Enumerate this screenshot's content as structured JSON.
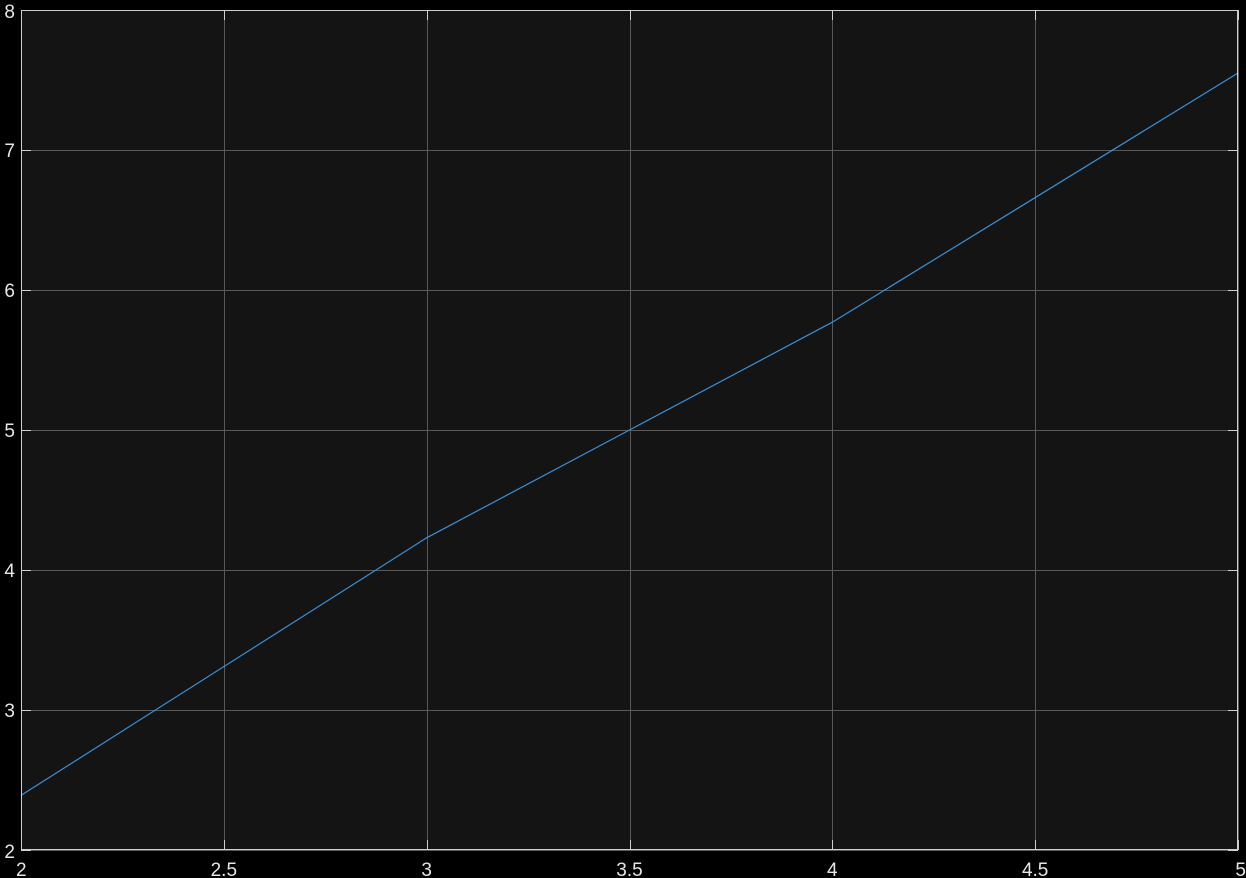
{
  "chart_data": {
    "type": "line",
    "title": "",
    "xlabel": "",
    "ylabel": "",
    "xlim": [
      2,
      5
    ],
    "ylim": [
      2,
      8
    ],
    "xticks": [
      2,
      2.5,
      3,
      3.5,
      4,
      4.5,
      5
    ],
    "yticks": [
      2,
      3,
      4,
      5,
      6,
      7,
      8
    ],
    "xtick_labels": [
      "2",
      "2.5",
      "3",
      "3.5",
      "4",
      "4.5",
      "5"
    ],
    "ytick_labels": [
      "2",
      "3",
      "4",
      "5",
      "6",
      "7",
      "8"
    ],
    "grid": true,
    "series": [
      {
        "color": "#3b8fd6",
        "x": [
          2,
          3,
          3.5,
          4,
          5
        ],
        "y": [
          2.39,
          4.23,
          5.0,
          5.77,
          7.55
        ]
      }
    ]
  },
  "colors": {
    "figure_background": "#000000",
    "axes_background": "#141414",
    "grid": "#5a5a5a",
    "axis_frame": "#cfcfcf",
    "tick_text": "#e6e6e6"
  }
}
